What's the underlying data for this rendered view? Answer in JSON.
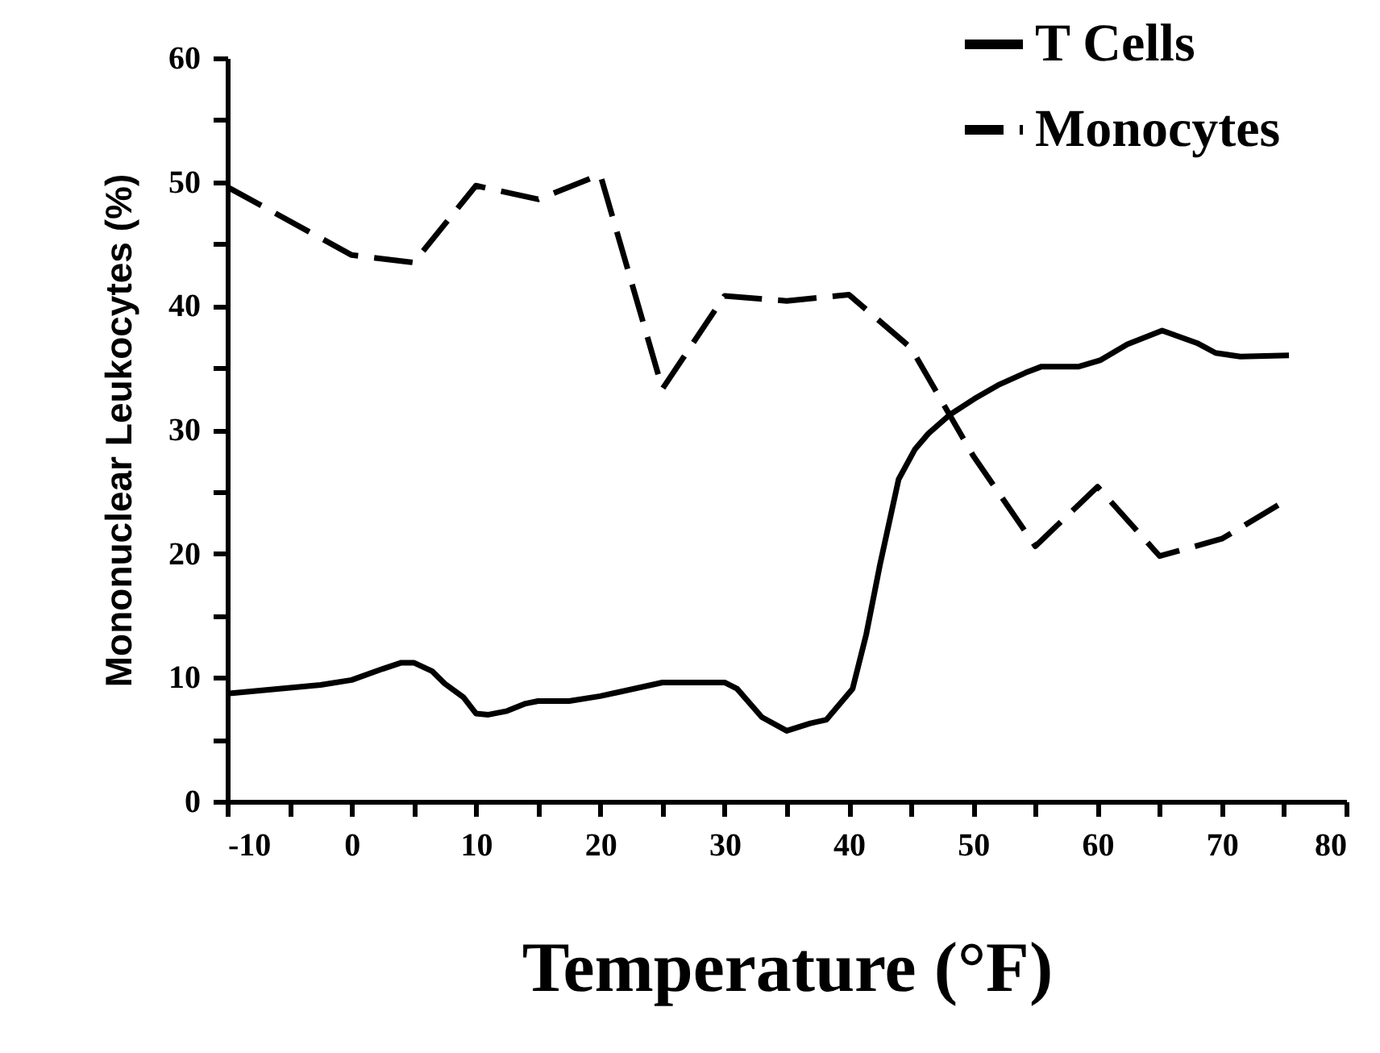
{
  "chart_data": {
    "type": "line",
    "xlabel": "Temperature (°F)",
    "ylabel": "Mononuclear Leukocytes (%)",
    "xlim": [
      -10,
      80
    ],
    "ylim": [
      0,
      60
    ],
    "xticks": [
      -10,
      {
        "value": -5,
        "label": null
      },
      0,
      {
        "value": 5,
        "label": null
      },
      10,
      {
        "value": 15,
        "label": null
      },
      20,
      {
        "value": 25,
        "label": null
      },
      30,
      {
        "value": 35,
        "label": null
      },
      40,
      {
        "value": 45,
        "label": null
      },
      50,
      {
        "value": 55,
        "label": null
      },
      60,
      {
        "value": 65,
        "label": null
      },
      70,
      {
        "value": 75,
        "label": null
      },
      80
    ],
    "yticks": [
      0,
      {
        "value": 5,
        "label": null
      },
      10,
      {
        "value": 15,
        "label": null
      },
      20,
      {
        "value": 25,
        "label": null
      },
      30,
      {
        "value": 35,
        "label": null
      },
      40,
      {
        "value": 45,
        "label": null
      },
      50,
      {
        "value": 55,
        "label": null
      },
      60
    ],
    "grid": false,
    "legend": "top right",
    "series": [
      {
        "name": "T Cells",
        "color": "#000000",
        "line_style": "solid",
        "x": [
          -10,
          -2.5,
          0,
          2.5,
          4,
          5,
          6.5,
          7.5,
          9,
          10,
          11,
          12.5,
          14,
          15,
          17.5,
          20,
          25,
          27.5,
          30,
          31,
          33,
          35,
          36.9,
          38.2,
          40.3,
          41.4,
          42.5,
          44,
          45.3,
          46.4,
          48.1,
          50.1,
          52,
          54.2,
          55.5,
          58.5,
          60.2,
          62.4,
          65.2,
          68,
          69.5,
          71.5,
          75.4
        ],
        "values": [
          8.7,
          9.4,
          9.8,
          10.7,
          11.2,
          11.2,
          10.5,
          9.5,
          8.4,
          7.1,
          7.0,
          7.3,
          7.9,
          8.1,
          8.1,
          8.5,
          9.6,
          9.6,
          9.6,
          9.1,
          6.8,
          5.7,
          6.3,
          6.6,
          9.1,
          13.5,
          19.1,
          26,
          28.4,
          29.7,
          31.2,
          32.5,
          33.6,
          34.6,
          35.1,
          35.1,
          35.6,
          36.9,
          38.0,
          37.0,
          36.2,
          35.9,
          36.0
        ]
      },
      {
        "name": "Monocytes",
        "color": "#000000",
        "line_style": "dashed",
        "x": [
          -10,
          0,
          5,
          10,
          15,
          20,
          25,
          30,
          35,
          40,
          45,
          50,
          55,
          60,
          65,
          70,
          75
        ],
        "values": [
          49.6,
          44.1,
          43.5,
          49.7,
          48.6,
          50.6,
          33.3,
          40.8,
          40.4,
          40.9,
          36.6,
          27.9,
          20.6,
          25.4,
          19.8,
          21.2,
          24.2
        ]
      }
    ]
  }
}
